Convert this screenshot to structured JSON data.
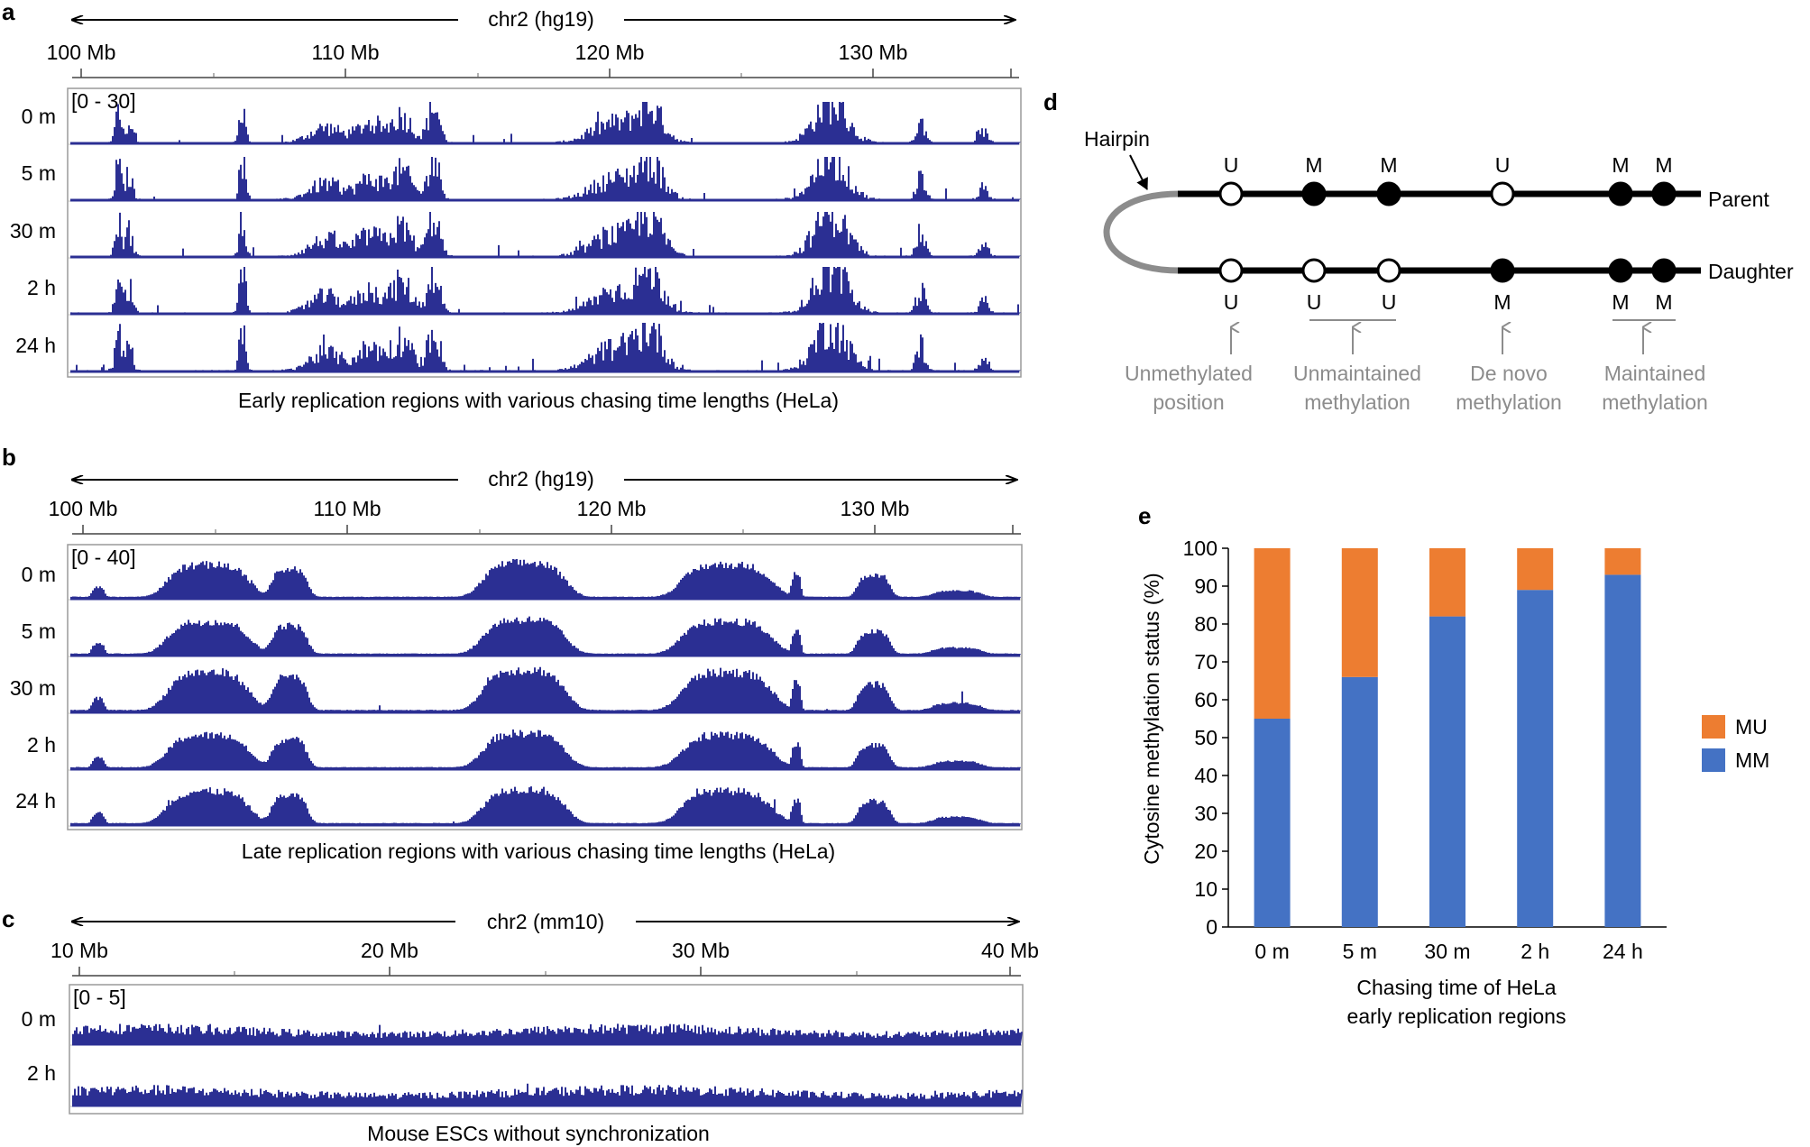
{
  "panel_a": {
    "letter": "a",
    "chrom": "chr2 (hg19)",
    "ticks": [
      "100 Mb",
      "110 Mb",
      "120 Mb",
      "130 Mb"
    ],
    "range": "[0 - 30]",
    "tracks": [
      "0 m",
      "5 m",
      "30 m",
      "2 h",
      "24 h"
    ],
    "caption": "Early replication regions with various chasing time lengths (HeLa)"
  },
  "panel_b": {
    "letter": "b",
    "chrom": "chr2 (hg19)",
    "ticks": [
      "100 Mb",
      "110 Mb",
      "120 Mb",
      "130 Mb"
    ],
    "range": "[0 - 40]",
    "tracks": [
      "0 m",
      "5 m",
      "30 m",
      "2 h",
      "24 h"
    ],
    "caption": "Late replication regions with various chasing time lengths (HeLa)"
  },
  "panel_c": {
    "letter": "c",
    "chrom": "chr2 (mm10)",
    "ticks": [
      "10 Mb",
      "20 Mb",
      "30 Mb",
      "40 Mb"
    ],
    "range": "[0 - 5]",
    "tracks": [
      "0 m",
      "2 h"
    ],
    "caption": "Mouse ESCs without synchronization"
  },
  "panel_d": {
    "letter": "d",
    "hairpin": "Hairpin",
    "parent": "Parent",
    "daughter": "Daughter",
    "parent_sites": [
      "U",
      "M",
      "M",
      "U",
      "M",
      "M"
    ],
    "daughter_sites": [
      "U",
      "U",
      "U",
      "M",
      "M",
      "M"
    ],
    "notes": [
      {
        "line1": "Unmethylated",
        "line2": "position"
      },
      {
        "line1": "Unmaintained",
        "line2": "methylation"
      },
      {
        "line1": "De novo",
        "line2": "methylation"
      },
      {
        "line1": "Maintained",
        "line2": "methylation"
      }
    ]
  },
  "colors": {
    "track": "#2b2f93",
    "mu": "#ed7d31",
    "mm": "#4472c4",
    "note_gray": "#8c8c8c"
  },
  "chart_data": {
    "type": "bar",
    "stacked": true,
    "letter": "e",
    "categories": [
      "0 m",
      "5 m",
      "30 m",
      "2 h",
      "24 h"
    ],
    "series": [
      {
        "name": "MM",
        "values": [
          55,
          66,
          82,
          89,
          93
        ]
      },
      {
        "name": "MU",
        "values": [
          45,
          34,
          18,
          11,
          7
        ]
      }
    ],
    "legend": [
      "MU",
      "MM"
    ],
    "ylabel": "Cytosine methylation status (%)",
    "xlabel_line1": "Chasing time of HeLa",
    "xlabel_line2": "early replication regions",
    "ylim": [
      0,
      100
    ],
    "yticks": [
      "0",
      "10",
      "20",
      "30",
      "40",
      "50",
      "60",
      "70",
      "80",
      "90",
      "100"
    ]
  }
}
